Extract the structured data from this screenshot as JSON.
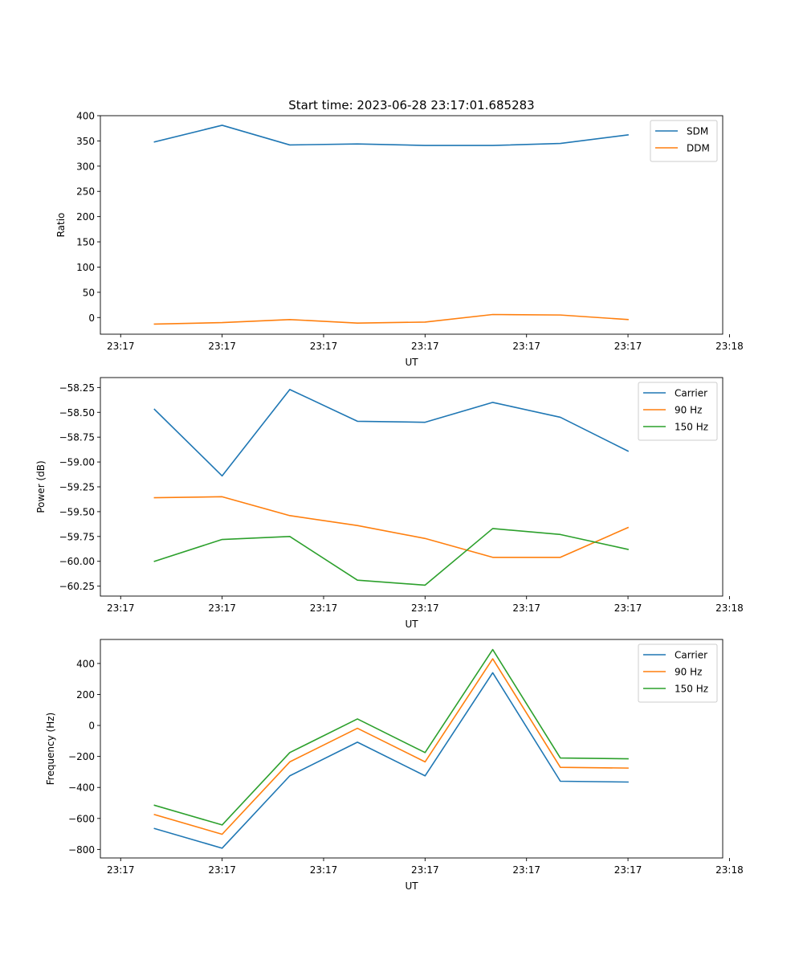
{
  "colors": {
    "blue": "#1f77b4",
    "orange": "#ff7f0e",
    "green": "#2ca02c"
  },
  "chart_data": [
    {
      "type": "line",
      "title": "Start time: 2023-06-28 23:17:01.685283",
      "xlabel": "UT",
      "ylabel": "Ratio",
      "x": [
        1,
        2,
        3,
        4,
        5,
        6,
        7,
        8
      ],
      "xlim": [
        0.2,
        9.4
      ],
      "xtick_values": [
        0.5,
        2,
        3.5,
        5,
        6.5,
        8,
        9.5
      ],
      "xtick_labels": [
        "23:17",
        "23:17",
        "23:17",
        "23:17",
        "23:17",
        "23:17",
        "23:18"
      ],
      "ylim": [
        -33,
        400
      ],
      "yticks": [
        0,
        50,
        100,
        150,
        200,
        250,
        300,
        350,
        400
      ],
      "ytick_labels": [
        "0",
        "50",
        "100",
        "150",
        "200",
        "250",
        "300",
        "350",
        "400"
      ],
      "legend": "top-right",
      "grid": false,
      "series": [
        {
          "name": "SDM",
          "color": "#1f77b4",
          "values": [
            348,
            381,
            342,
            344,
            341,
            341,
            345,
            362
          ]
        },
        {
          "name": "DDM",
          "color": "#ff7f0e",
          "values": [
            -13,
            -10,
            -4,
            -11,
            -9,
            6,
            5,
            -4
          ]
        }
      ]
    },
    {
      "type": "line",
      "xlabel": "UT",
      "ylabel": "Power (dB)",
      "x": [
        1,
        2,
        3,
        4,
        5,
        6,
        7,
        8
      ],
      "xlim": [
        0.2,
        9.4
      ],
      "xtick_values": [
        0.5,
        2,
        3.5,
        5,
        6.5,
        8,
        9.5
      ],
      "xtick_labels": [
        "23:17",
        "23:17",
        "23:17",
        "23:17",
        "23:17",
        "23:17",
        "23:18"
      ],
      "ylim": [
        -60.35,
        -58.15
      ],
      "yticks": [
        -58.25,
        -58.5,
        -58.75,
        -59.0,
        -59.25,
        -59.5,
        -59.75,
        -60.0,
        -60.25
      ],
      "ytick_labels": [
        "−58.25",
        "−58.50",
        "−58.75",
        "−59.00",
        "−59.25",
        "−59.50",
        "−59.75",
        "−60.00",
        "−60.25"
      ],
      "legend": "top-right",
      "grid": false,
      "series": [
        {
          "name": "Carrier",
          "color": "#1f77b4",
          "values": [
            -58.47,
            -59.14,
            -58.27,
            -58.59,
            -58.6,
            -58.4,
            -58.55,
            -58.89
          ]
        },
        {
          "name": "90 Hz",
          "color": "#ff7f0e",
          "values": [
            -59.36,
            -59.35,
            -59.54,
            -59.64,
            -59.77,
            -59.96,
            -59.96,
            -59.66
          ]
        },
        {
          "name": "150 Hz",
          "color": "#2ca02c",
          "values": [
            -60.0,
            -59.78,
            -59.75,
            -60.19,
            -60.24,
            -59.67,
            -59.73,
            -59.88
          ]
        }
      ]
    },
    {
      "type": "line",
      "xlabel": "UT",
      "ylabel": "Frequency (Hz)",
      "x": [
        1,
        2,
        3,
        4,
        5,
        6,
        7,
        8
      ],
      "xlim": [
        0.2,
        9.4
      ],
      "xtick_values": [
        0.5,
        2,
        3.5,
        5,
        6.5,
        8,
        9.5
      ],
      "xtick_labels": [
        "23:17",
        "23:17",
        "23:17",
        "23:17",
        "23:17",
        "23:17",
        "23:18"
      ],
      "ylim": [
        -855,
        555
      ],
      "yticks": [
        -800,
        -600,
        -400,
        -200,
        0,
        200,
        400
      ],
      "ytick_labels": [
        "−800",
        "−600",
        "−400",
        "−200",
        "0",
        "200",
        "400"
      ],
      "legend": "top-right",
      "grid": false,
      "series": [
        {
          "name": "Carrier",
          "color": "#1f77b4",
          "values": [
            -665,
            -792,
            -325,
            -108,
            -325,
            340,
            -360,
            -365
          ]
        },
        {
          "name": "90 Hz",
          "color": "#ff7f0e",
          "values": [
            -575,
            -702,
            -235,
            -18,
            -235,
            430,
            -270,
            -275
          ]
        },
        {
          "name": "150 Hz",
          "color": "#2ca02c",
          "values": [
            -515,
            -642,
            -175,
            42,
            -175,
            490,
            -210,
            -215
          ]
        }
      ]
    }
  ]
}
